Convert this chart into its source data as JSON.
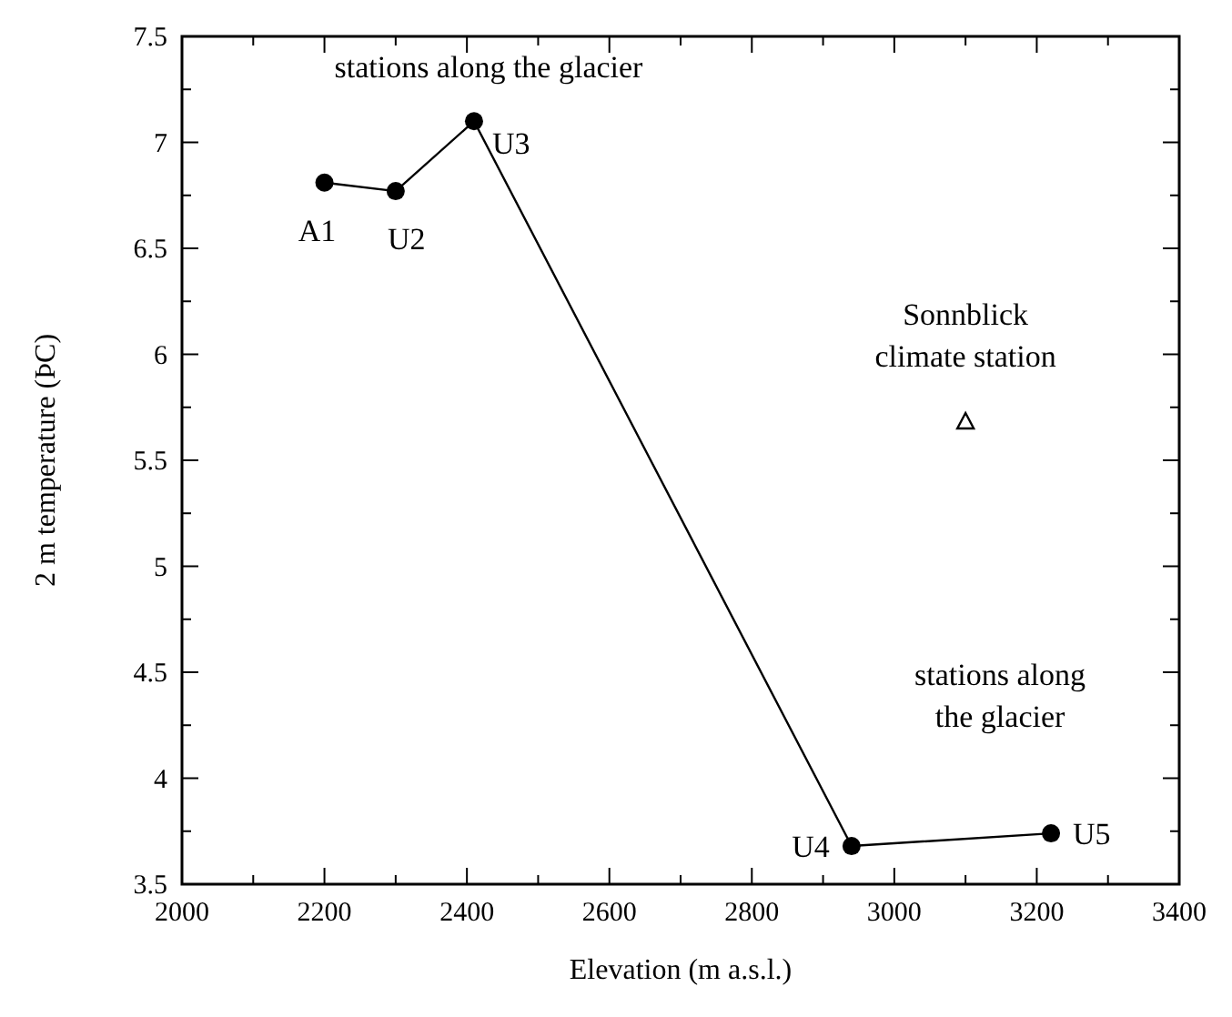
{
  "chart_data": {
    "type": "line",
    "xlabel": "Elevation (m a.s.l.)",
    "ylabel": "2 m temperature (ÞC)",
    "xlim": [
      2000,
      3400
    ],
    "xticks": [
      2000,
      2200,
      2400,
      2600,
      2800,
      3000,
      3200,
      3400
    ],
    "ylim": [
      3.5,
      7.5
    ],
    "yticks": [
      3.5,
      4,
      4.5,
      5,
      5.5,
      6,
      6.5,
      7,
      7.5
    ],
    "grid": false,
    "series": [
      {
        "color": "#000000",
        "marker": "circle",
        "line_style": "solid",
        "x": [
          2200,
          2300,
          2410,
          2940,
          3220
        ],
        "values": [
          6.81,
          6.77,
          7.1,
          3.68,
          3.74
        ]
      },
      {
        "type": "scatter",
        "color": "#000000",
        "marker": "triangle",
        "x": [
          3100
        ],
        "values": [
          5.68
        ]
      }
    ],
    "annotations": [
      {
        "text": "A1",
        "x": 2200,
        "y": 6.81
      },
      {
        "text": "U2",
        "x": 2300,
        "y": 6.77
      },
      {
        "text": "U3",
        "x": 2410,
        "y": 7.1
      },
      {
        "text": "U4",
        "x": 2940,
        "y": 3.68
      },
      {
        "text": "U5",
        "x": 3220,
        "y": 3.74
      },
      "stations along the glacier",
      "stations along\nthe glacier",
      {
        "text": "Sonnblick\nclimate station",
        "x": 3100,
        "y": 5.68
      }
    ]
  }
}
